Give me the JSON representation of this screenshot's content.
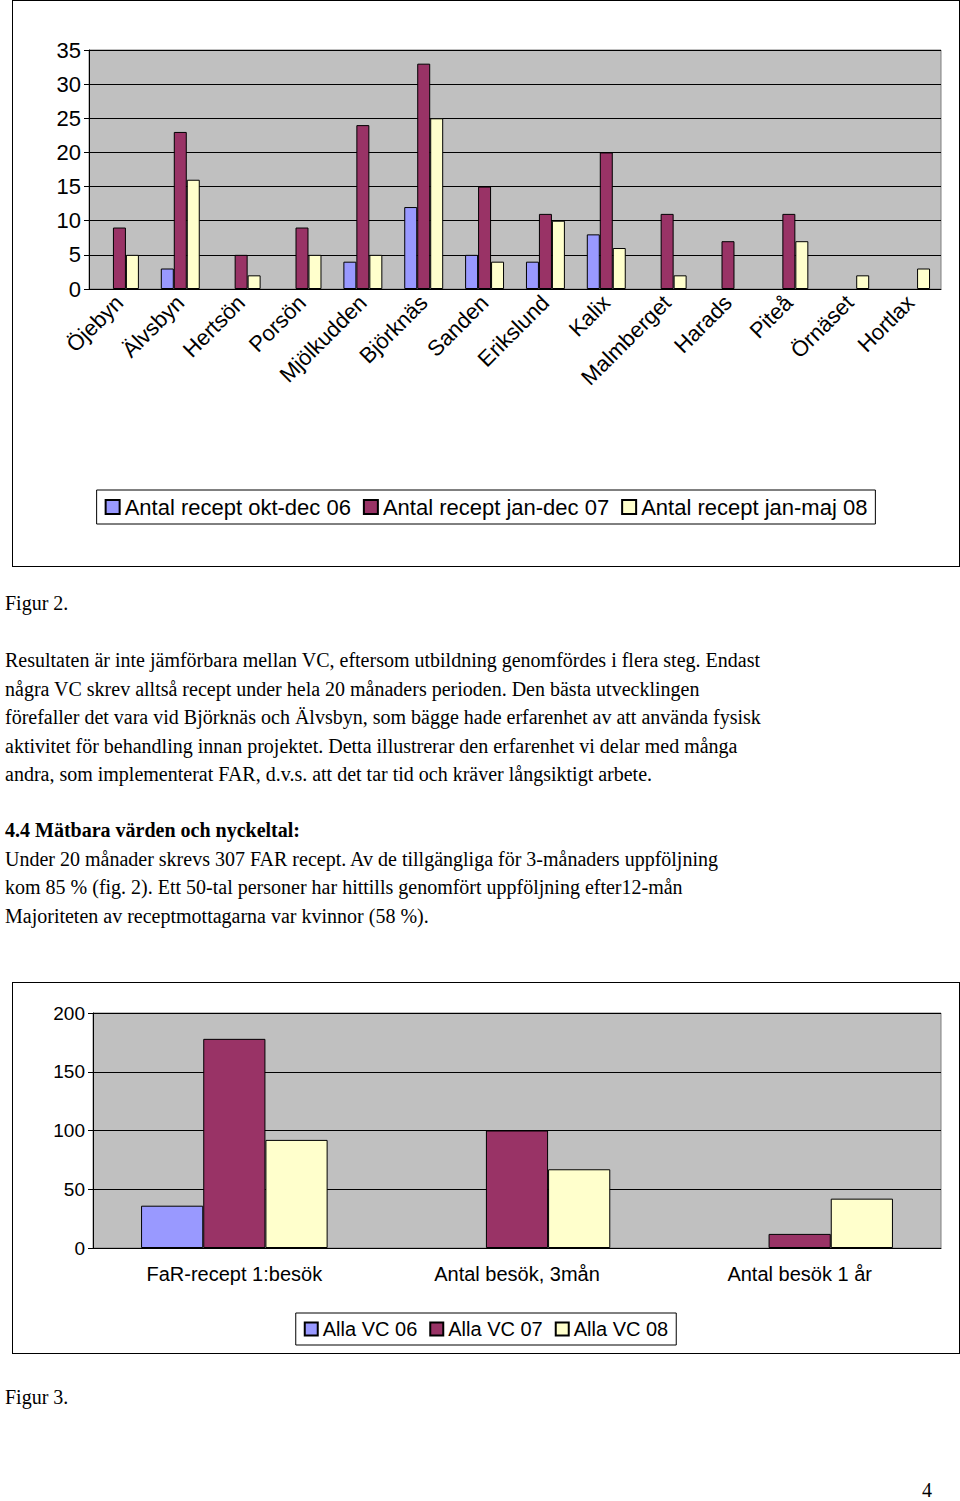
{
  "chart_data": [
    {
      "type": "bar",
      "categories": [
        "Öjebyn",
        "Älvsbyn",
        "Hertsön",
        "Porsön",
        "Mjölkudden",
        "Björknäs",
        "Sanden",
        "Erikslund",
        "Kalix",
        "Malmberget",
        "Harads",
        "Piteå",
        "Örnäset",
        "Hortlax"
      ],
      "series": [
        {
          "name": "Antal recept okt-dec 06",
          "color": "#9999ff",
          "values": [
            null,
            3,
            null,
            null,
            4,
            12,
            5,
            4,
            8,
            null,
            null,
            null,
            null,
            null
          ]
        },
        {
          "name": "Antal recept jan-dec 07",
          "color": "#993366",
          "values": [
            9,
            23,
            5,
            9,
            24,
            33,
            15,
            11,
            20,
            11,
            7,
            11,
            null,
            null
          ]
        },
        {
          "name": "Antal recept jan-maj 08",
          "color": "#ffffcc",
          "values": [
            5,
            16,
            2,
            5,
            5,
            25,
            4,
            10,
            6,
            2,
            null,
            7,
            2,
            3
          ]
        }
      ],
      "ylim": [
        0,
        35
      ],
      "yticks": [
        0,
        5,
        10,
        15,
        20,
        25,
        30,
        35
      ],
      "grid": true,
      "legend": "bottom"
    },
    {
      "type": "bar",
      "categories": [
        "FaR-recept 1:besök",
        "Antal besök, 3mån",
        "Antal besök 1 år"
      ],
      "series": [
        {
          "name": "Alla VC 06",
          "color": "#9999ff",
          "values": [
            36,
            null,
            null
          ]
        },
        {
          "name": "Alla VC 07",
          "color": "#993366",
          "values": [
            178,
            100,
            12
          ]
        },
        {
          "name": "Alla VC 08",
          "color": "#ffffcc",
          "values": [
            92,
            67,
            42
          ]
        }
      ],
      "ylim": [
        0,
        200
      ],
      "yticks": [
        0,
        50,
        100,
        150,
        200
      ],
      "grid": true,
      "legend": "bottom"
    }
  ],
  "document": {
    "figure_captions": [
      "Figur 2.",
      "Figur 3."
    ],
    "paragraph_1": [
      "Resultaten är inte jämförbara mellan VC, eftersom utbildning genomfördes i flera steg. Endast",
      "några VC skrev alltså recept under hela 20 månaders perioden. Den bästa utvecklingen",
      "förefaller det vara vid Björknäs och Älvsbyn, som bägge hade erfarenhet av att använda fysisk",
      "aktivitet för behandling innan projektet. Detta illustrerar den erfarenhet vi delar med många",
      "andra, som implementerat FAR, d.v.s. att det tar tid och kräver långsiktigt arbete."
    ],
    "heading": "4.4 Mätbara värden och nyckeltal:",
    "paragraph_2": [
      "Under 20 månader skrevs 307 FAR recept. Av de tillgängliga för 3-månaders uppföljning",
      "kom 85 % (fig. 2). Ett 50-tal personer har hittills genomfört uppföljning efter12-mån",
      "Majoriteten av receptmottagarna var kvinnor (58 %)."
    ],
    "page_number": "4"
  }
}
